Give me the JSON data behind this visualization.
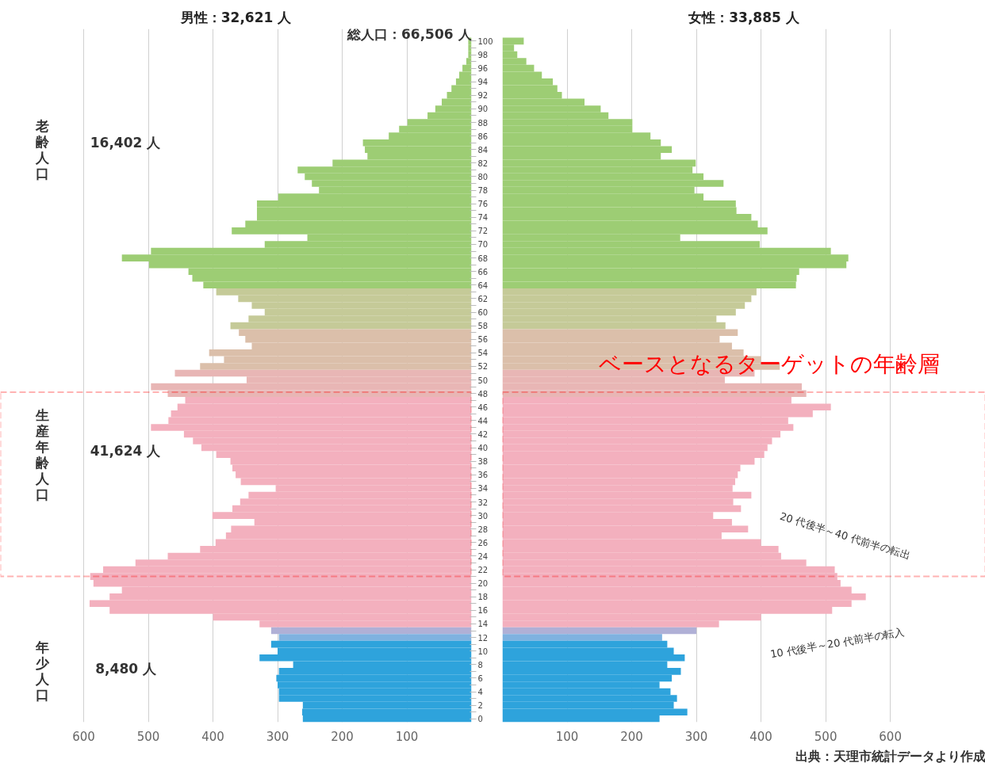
{
  "chart_data": [
    {
      "type": "bar",
      "orientation": "horizontal",
      "title": "男性：32,621 人",
      "categories": [
        "100",
        null,
        "98",
        null,
        "96",
        null,
        "94",
        null,
        "92",
        null,
        "90",
        null,
        "88",
        null,
        "86",
        null,
        "84",
        null,
        "82",
        null,
        "80",
        null,
        "78",
        null,
        "76",
        null,
        "74",
        null,
        "72",
        null,
        "70",
        null,
        "68",
        null,
        "66",
        null,
        "64",
        null,
        "62",
        null,
        "60",
        null,
        "58",
        null,
        "56",
        null,
        "54",
        null,
        "52",
        null,
        "50",
        null,
        "48",
        null,
        "46",
        null,
        "44",
        null,
        "42",
        null,
        "40",
        null,
        "38",
        null,
        "36",
        null,
        "34",
        null,
        "32",
        null,
        "30",
        null,
        "28",
        null,
        "26",
        null,
        "24",
        null,
        "22",
        null,
        "20",
        null,
        "18",
        null,
        "16",
        null,
        "14",
        null,
        "12",
        null,
        "10",
        null,
        "8",
        null,
        "6",
        null,
        "4",
        null,
        "2",
        null,
        "0"
      ],
      "values": [
        5,
        5,
        5,
        8,
        14,
        19,
        24,
        31,
        38,
        46,
        56,
        68,
        99,
        112,
        128,
        168,
        165,
        161,
        215,
        269,
        258,
        247,
        236,
        299,
        332,
        332,
        332,
        350,
        371,
        254,
        320,
        496,
        541,
        499,
        438,
        432,
        415,
        395,
        361,
        340,
        320,
        345,
        373,
        360,
        350,
        340,
        406,
        383,
        420,
        459,
        348,
        496,
        470,
        443,
        455,
        465,
        469,
        496,
        445,
        431,
        418,
        395,
        373,
        370,
        365,
        357,
        303,
        345,
        358,
        370,
        401,
        336,
        372,
        380,
        396,
        420,
        470,
        520,
        570,
        590,
        585,
        541,
        560,
        591,
        560,
        400,
        328,
        310,
        298,
        310,
        300,
        328,
        276,
        298,
        302,
        300,
        298,
        298,
        261,
        262,
        261
      ],
      "colors": [
        "#9dcd74",
        "#9dcd74",
        "#9dcd74",
        "#9dcd74",
        "#9dcd74",
        "#9dcd74",
        "#9dcd74",
        "#9dcd74",
        "#9dcd74",
        "#9dcd74",
        "#9dcd74",
        "#9dcd74",
        "#9dcd74",
        "#9dcd74",
        "#9dcd74",
        "#9dcd74",
        "#9dcd74",
        "#9dcd74",
        "#9dcd74",
        "#9dcd74",
        "#9dcd74",
        "#9dcd74",
        "#9dcd74",
        "#9dcd74",
        "#9dcd74",
        "#9dcd74",
        "#9dcd74",
        "#9dcd74",
        "#9dcd74",
        "#9dcd74",
        "#9dcd74",
        "#9dcd74",
        "#9dcd74",
        "#9dcd74",
        "#9dcd74",
        "#9dcd74",
        "#9dcd74",
        "#c5ca98",
        "#c5ca98",
        "#c5ca98",
        "#c5ca98",
        "#c5ca98",
        "#c5ca98",
        "#dbbfaa",
        "#dbbfaa",
        "#dbbfaa",
        "#dbbfaa",
        "#dbbfaa",
        "#dbbfaa",
        "#e8b6b5",
        "#e8b6b5",
        "#e8b6b5",
        "#e8b6b5",
        "#f3b0be",
        "#f3b0be",
        "#f3b0be",
        "#f3b0be",
        "#f3b0be",
        "#f3b0be",
        "#f3b0be",
        "#f3b0be",
        "#f3b0be",
        "#f3b0be",
        "#f3b0be",
        "#f3b0be",
        "#f3b0be",
        "#f3b0be",
        "#f3b0be",
        "#f3b0be",
        "#f3b0be",
        "#f3b0be",
        "#f3b0be",
        "#f3b0be",
        "#f3b0be",
        "#f3b0be",
        "#f3b0be",
        "#f3b0be",
        "#f3b0be",
        "#f3b0be",
        "#f3b0be",
        "#f3b0be",
        "#f3b0be",
        "#f3b0be",
        "#f3b0be",
        "#f3b0be",
        "#f3b0be",
        "#f3b0be",
        "#b0b0d6",
        "#7fb2e0",
        "#2ea3dc",
        "#2ea3dc",
        "#2ea3dc",
        "#2ea3dc",
        "#2ea3dc",
        "#2ea3dc",
        "#2ea3dc",
        "#2ea3dc",
        "#2ea3dc",
        "#2ea3dc",
        "#2ea3dc",
        "#2ea3dc"
      ],
      "xlim": [
        729,
        0
      ],
      "xticks": [
        600,
        500,
        400,
        300,
        200,
        100
      ],
      "grid": "x",
      "annotations": [
        "総人口：66,506 人",
        "老齢人口",
        "16,402 人",
        "生産年齢人口",
        "41,624 人",
        "年少人口",
        "8,480 人"
      ]
    },
    {
      "type": "bar",
      "orientation": "horizontal",
      "title": "女性：33,885 人",
      "categories": [
        "100",
        null,
        "98",
        null,
        "96",
        null,
        "94",
        null,
        "92",
        null,
        "90",
        null,
        "88",
        null,
        "86",
        null,
        "84",
        null,
        "82",
        null,
        "80",
        null,
        "78",
        null,
        "76",
        null,
        "74",
        null,
        "72",
        null,
        "70",
        null,
        "68",
        null,
        "66",
        null,
        "64",
        null,
        "62",
        null,
        "60",
        null,
        "58",
        null,
        "56",
        null,
        "54",
        null,
        "52",
        null,
        "50",
        null,
        "48",
        null,
        "46",
        null,
        "44",
        null,
        "42",
        null,
        "40",
        null,
        "38",
        null,
        "36",
        null,
        "34",
        null,
        "32",
        null,
        "30",
        null,
        "28",
        null,
        "26",
        null,
        "24",
        null,
        "22",
        null,
        "20",
        null,
        "18",
        null,
        "16",
        null,
        "14",
        null,
        "12",
        null,
        "10",
        null,
        "8",
        null,
        "6",
        null,
        "4",
        null,
        "2",
        null,
        "0"
      ],
      "values": [
        33,
        18,
        23,
        37,
        49,
        61,
        78,
        85,
        92,
        127,
        152,
        164,
        201,
        201,
        229,
        245,
        262,
        245,
        299,
        294,
        311,
        342,
        297,
        311,
        361,
        362,
        385,
        395,
        410,
        275,
        398,
        508,
        535,
        532,
        459,
        455,
        454,
        393,
        385,
        375,
        361,
        331,
        345,
        364,
        336,
        355,
        373,
        400,
        429,
        390,
        344,
        463,
        470,
        447,
        508,
        480,
        442,
        450,
        430,
        417,
        410,
        405,
        390,
        368,
        364,
        360,
        356,
        385,
        357,
        369,
        326,
        355,
        380,
        339,
        400,
        427,
        431,
        470,
        514,
        518,
        523,
        540,
        562,
        540,
        510,
        400,
        335,
        300,
        247,
        255,
        265,
        282,
        255,
        276,
        262,
        243,
        260,
        270,
        265,
        286,
        243
      ],
      "colors": [
        "#9dcd74",
        "#9dcd74",
        "#9dcd74",
        "#9dcd74",
        "#9dcd74",
        "#9dcd74",
        "#9dcd74",
        "#9dcd74",
        "#9dcd74",
        "#9dcd74",
        "#9dcd74",
        "#9dcd74",
        "#9dcd74",
        "#9dcd74",
        "#9dcd74",
        "#9dcd74",
        "#9dcd74",
        "#9dcd74",
        "#9dcd74",
        "#9dcd74",
        "#9dcd74",
        "#9dcd74",
        "#9dcd74",
        "#9dcd74",
        "#9dcd74",
        "#9dcd74",
        "#9dcd74",
        "#9dcd74",
        "#9dcd74",
        "#9dcd74",
        "#9dcd74",
        "#9dcd74",
        "#9dcd74",
        "#9dcd74",
        "#9dcd74",
        "#9dcd74",
        "#9dcd74",
        "#c5ca98",
        "#c5ca98",
        "#c5ca98",
        "#c5ca98",
        "#c5ca98",
        "#c5ca98",
        "#dbbfaa",
        "#dbbfaa",
        "#dbbfaa",
        "#dbbfaa",
        "#dbbfaa",
        "#dbbfaa",
        "#e8b6b5",
        "#e8b6b5",
        "#e8b6b5",
        "#e8b6b5",
        "#f3b0be",
        "#f3b0be",
        "#f3b0be",
        "#f3b0be",
        "#f3b0be",
        "#f3b0be",
        "#f3b0be",
        "#f3b0be",
        "#f3b0be",
        "#f3b0be",
        "#f3b0be",
        "#f3b0be",
        "#f3b0be",
        "#f3b0be",
        "#f3b0be",
        "#f3b0be",
        "#f3b0be",
        "#f3b0be",
        "#f3b0be",
        "#f3b0be",
        "#f3b0be",
        "#f3b0be",
        "#f3b0be",
        "#f3b0be",
        "#f3b0be",
        "#f3b0be",
        "#f3b0be",
        "#f3b0be",
        "#f3b0be",
        "#f3b0be",
        "#f3b0be",
        "#f3b0be",
        "#f3b0be",
        "#f3b0be",
        "#b0b0d6",
        "#7fb2e0",
        "#2ea3dc",
        "#2ea3dc",
        "#2ea3dc",
        "#2ea3dc",
        "#2ea3dc",
        "#2ea3dc",
        "#2ea3dc",
        "#2ea3dc",
        "#2ea3dc",
        "#2ea3dc",
        "#2ea3dc",
        "#2ea3dc"
      ],
      "xlim": [
        0,
        747
      ],
      "xticks": [
        100,
        200,
        300,
        400,
        500,
        600
      ],
      "grid": "x",
      "tick_labels": "x",
      "annotations": [
        "ベースとなるターゲットの年齢層",
        "20 代後半～40 代前半の転出",
        "10 代後半～20 代前半の転入",
        "出典：天理市統計データより作成"
      ]
    }
  ]
}
